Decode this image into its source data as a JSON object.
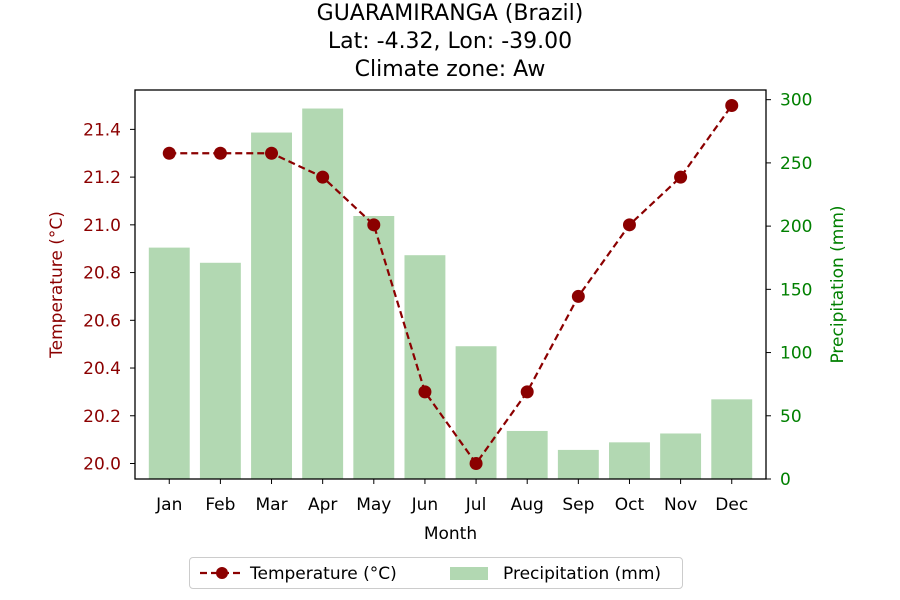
{
  "chart_data": {
    "type": "bar+line",
    "title_lines": [
      "GUARAMIRANGA (Brazil)",
      "Lat: -4.32, Lon: -39.00",
      "Climate zone: Aw"
    ],
    "xlabel": "Month",
    "ylabel_left": "Temperature (°C)",
    "ylabel_right": "Precipitation (mm)",
    "categories": [
      "Jan",
      "Feb",
      "Mar",
      "Apr",
      "May",
      "Jun",
      "Jul",
      "Aug",
      "Sep",
      "Oct",
      "Nov",
      "Dec"
    ],
    "series": [
      {
        "name": "Temperature (°C)",
        "type": "line",
        "axis": "left",
        "color": "#8b0000",
        "values": [
          21.3,
          21.3,
          21.3,
          21.2,
          21.0,
          20.3,
          20.0,
          20.3,
          20.7,
          21.0,
          21.2,
          21.5
        ]
      },
      {
        "name": "Precipitation (mm)",
        "type": "bar",
        "axis": "right",
        "color": "#b2d8b2",
        "values": [
          183,
          171,
          274,
          293,
          208,
          177,
          105,
          38,
          23,
          29,
          36,
          63
        ]
      }
    ],
    "ylim_left": [
      19.935,
      21.565
    ],
    "yticks_left": [
      "20.0",
      "20.2",
      "20.4",
      "20.6",
      "20.8",
      "21.0",
      "21.2",
      "21.4"
    ],
    "ylim_right": [
      0,
      307.65
    ],
    "yticks_right": [
      "0",
      "50",
      "100",
      "150",
      "200",
      "250",
      "300"
    ],
    "legend_placement": "bottom-center",
    "grid": false,
    "left_axis_color": "#8b0000",
    "right_axis_color": "#008000"
  }
}
